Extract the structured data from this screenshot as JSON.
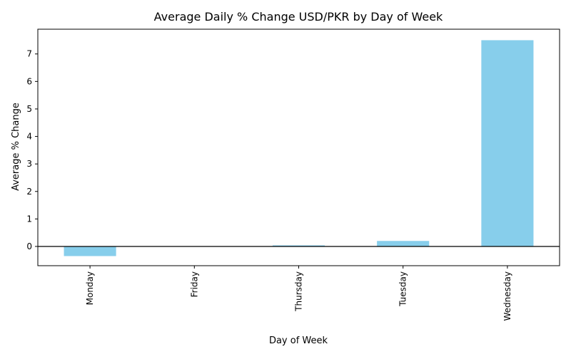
{
  "chart_data": {
    "type": "bar",
    "title": "Average Daily % Change USD/PKR by Day of Week",
    "xlabel": "Day of Week",
    "ylabel": "Average % Change",
    "categories": [
      "Monday",
      "Friday",
      "Thursday",
      "Tuesday",
      "Wednesday"
    ],
    "values": [
      -0.35,
      0.0,
      0.04,
      0.2,
      7.5
    ],
    "ylim": [
      -0.7,
      7.9
    ],
    "yticks": [
      0,
      1,
      2,
      3,
      4,
      5,
      6,
      7
    ],
    "bar_color": "#87ceeb",
    "zero_line": true,
    "grid": false,
    "legend": "none"
  }
}
